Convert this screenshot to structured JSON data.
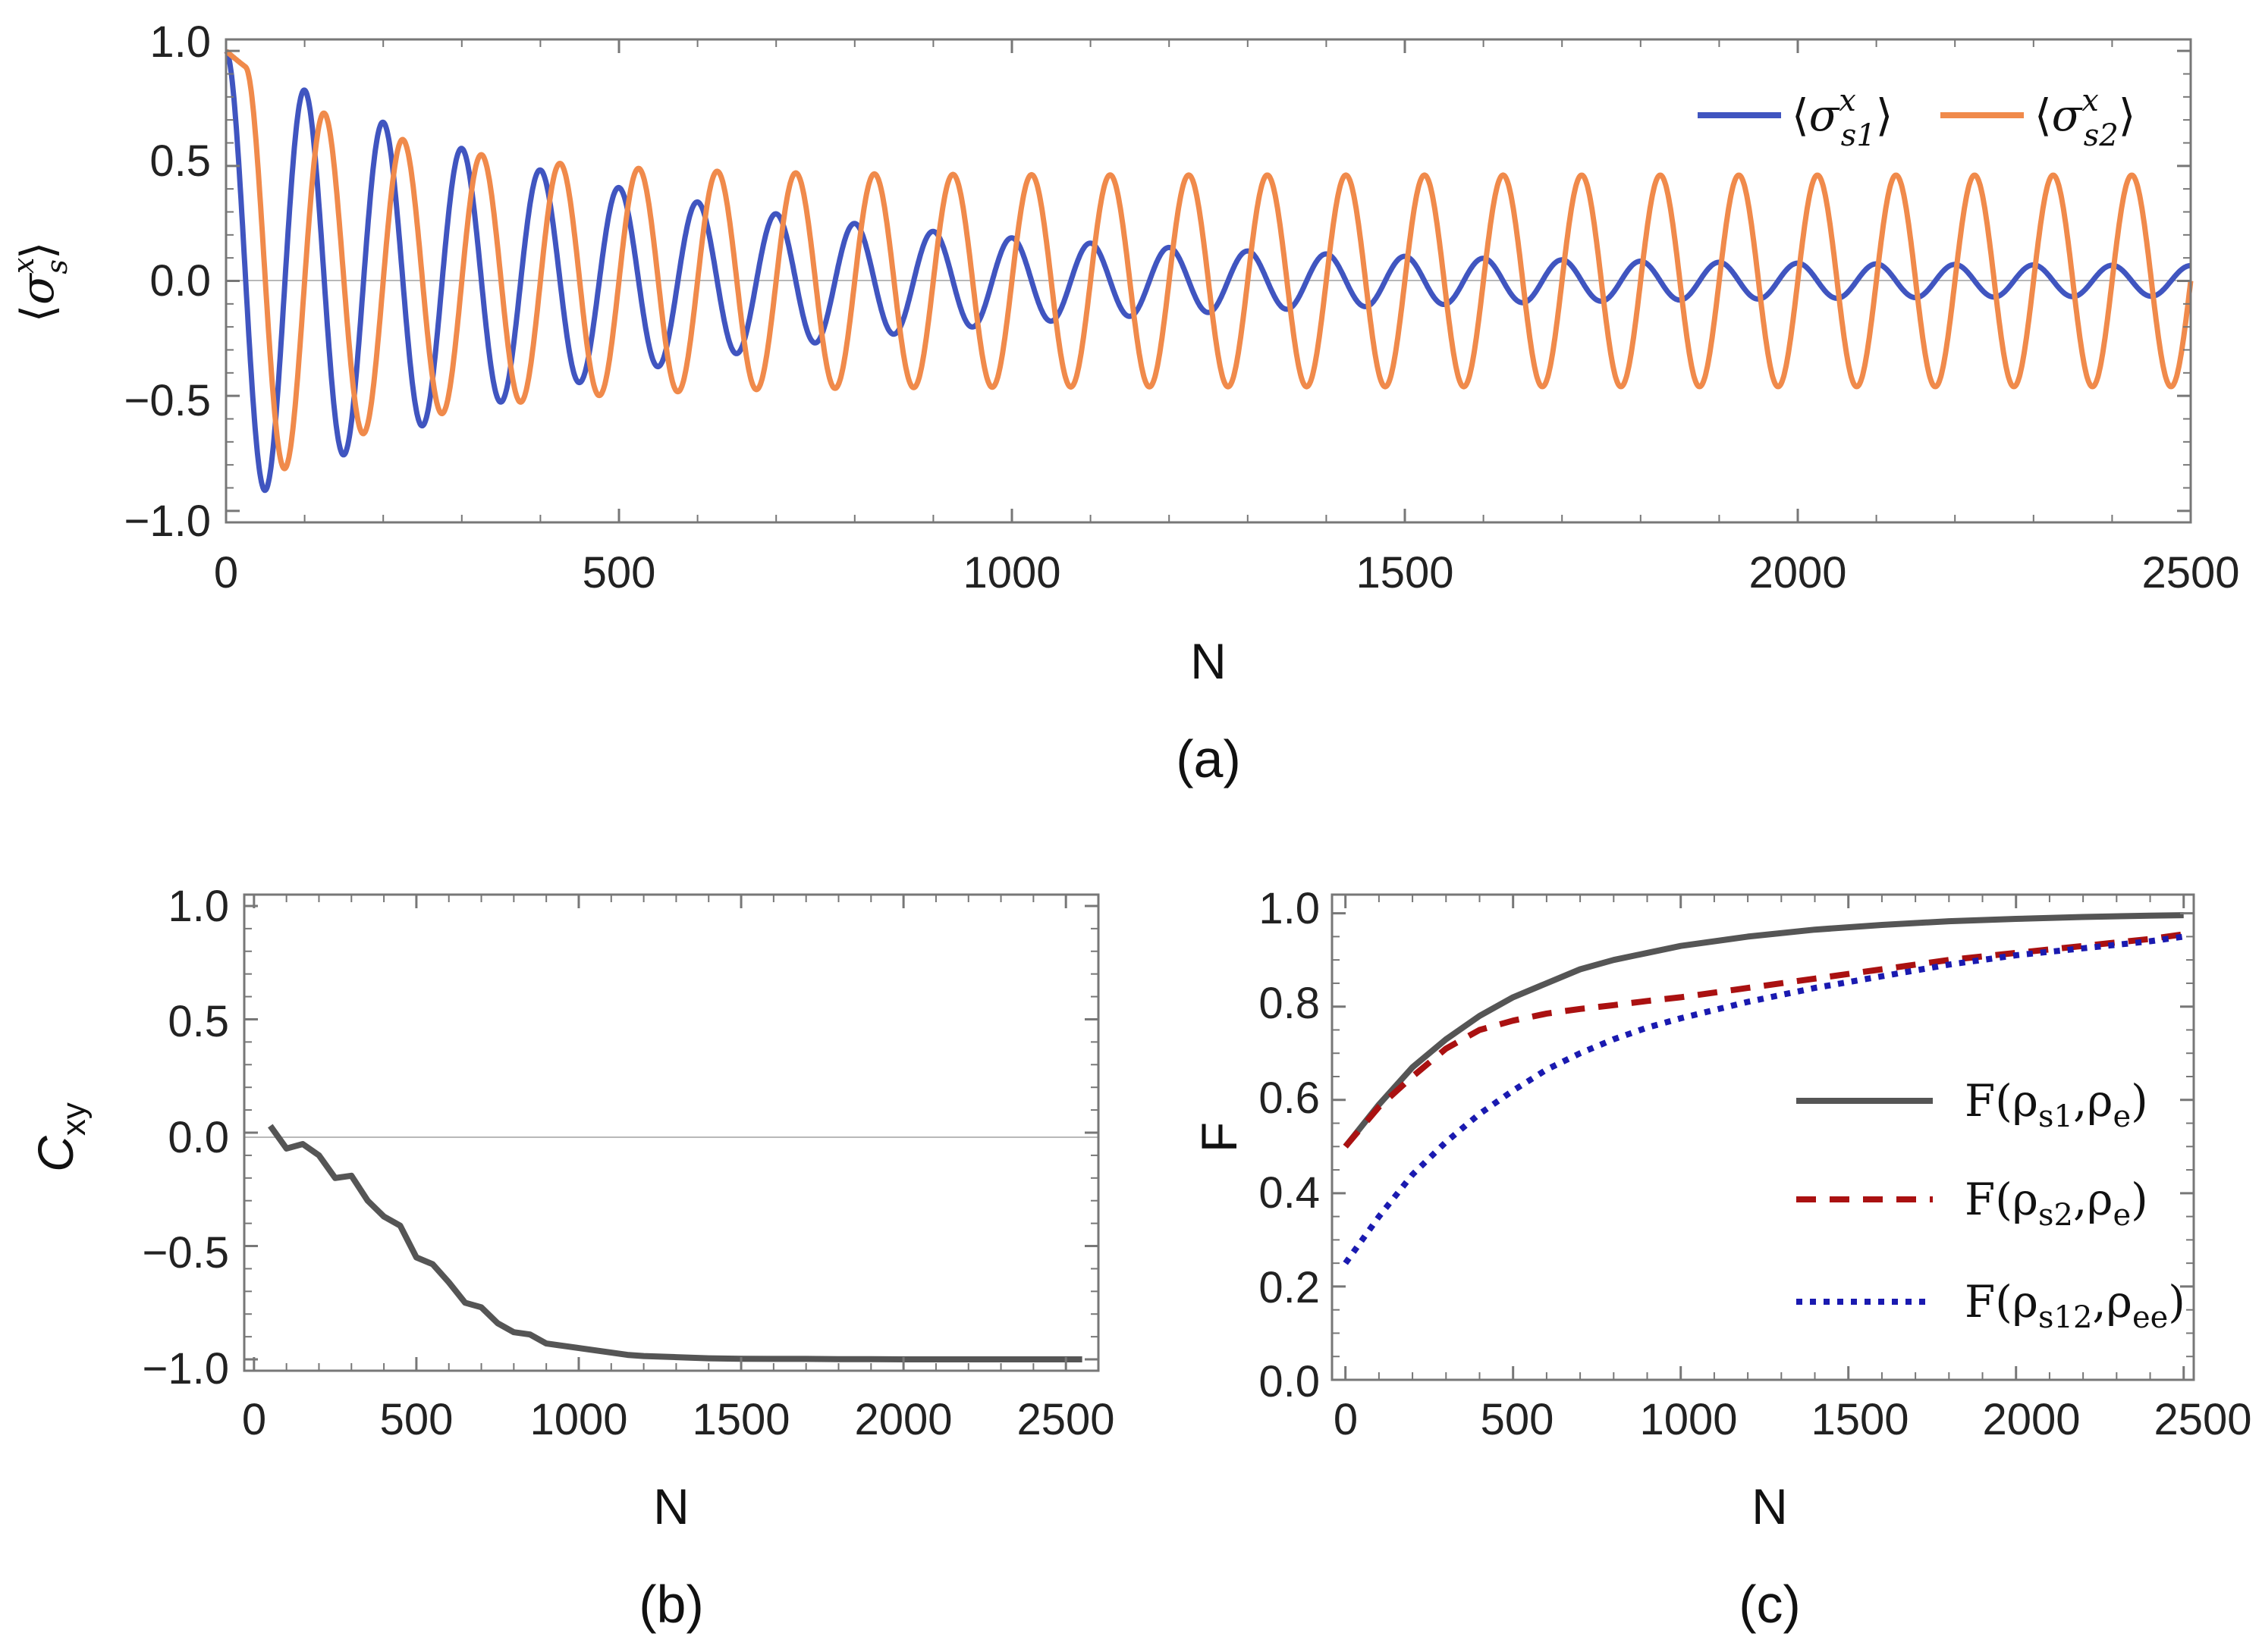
{
  "chart_data": [
    {
      "id": "a",
      "type": "line",
      "caption": "(a)",
      "xlabel": "N",
      "ylabel": "⟨σ_s^x⟩",
      "xlim": [
        0,
        2500
      ],
      "ylim": [
        -1.05,
        1.05
      ],
      "xticks": [
        "0",
        "500",
        "1000",
        "1500",
        "2000",
        "2500"
      ],
      "yticks": [
        "1.0",
        "0.5",
        "0.0",
        "−0.5",
        "−1.0"
      ],
      "legend_position": "top-right",
      "period_N": 100,
      "series": [
        {
          "name": "⟨σ^x_s1⟩",
          "legend_main": "σ",
          "legend_sup": "x",
          "legend_sub": "s1",
          "color": "#4055c0",
          "initial_amplitude": 1.0,
          "long_time_amplitude": 0.06,
          "decay_N": 500
        },
        {
          "name": "⟨σ^x_s2⟩",
          "legend_main": "σ",
          "legend_sup": "x",
          "legend_sub": "s2",
          "color": "#f08a4b",
          "initial_amplitude": 1.0,
          "long_time_amplitude": 0.46,
          "decay_N": 180,
          "phase_lag_N": 25
        }
      ]
    },
    {
      "id": "b",
      "type": "line",
      "caption": "(b)",
      "xlabel": "N",
      "ylabel": "Cxy",
      "ylabel_main": "C",
      "ylabel_sub": "xy",
      "xlim": [
        -30,
        2600
      ],
      "ylim": [
        -1.05,
        1.05
      ],
      "xticks": [
        "0",
        "500",
        "1000",
        "1500",
        "2000",
        "2500"
      ],
      "yticks": [
        "1.0",
        "0.5",
        "0.0",
        "−0.5",
        "−1.0"
      ],
      "series": [
        {
          "name": "Cxy",
          "color": "#555555",
          "x": [
            50,
            100,
            150,
            200,
            250,
            300,
            350,
            400,
            450,
            500,
            550,
            600,
            650,
            700,
            750,
            800,
            850,
            900,
            950,
            1000,
            1050,
            1100,
            1150,
            1200,
            1300,
            1400,
            1500,
            1600,
            1700,
            1800,
            1900,
            2000,
            2100,
            2200,
            2300,
            2400,
            2500,
            2550
          ],
          "y": [
            0.03,
            -0.07,
            -0.05,
            -0.1,
            -0.2,
            -0.19,
            -0.3,
            -0.37,
            -0.41,
            -0.55,
            -0.58,
            -0.66,
            -0.75,
            -0.77,
            -0.84,
            -0.88,
            -0.89,
            -0.93,
            -0.94,
            -0.95,
            -0.96,
            -0.97,
            -0.98,
            -0.985,
            -0.99,
            -0.995,
            -0.997,
            -0.998,
            -0.998,
            -0.999,
            -0.999,
            -1.0,
            -1.0,
            -1.0,
            -1.0,
            -1.0,
            -1.0,
            -1.0
          ]
        }
      ]
    },
    {
      "id": "c",
      "type": "line",
      "caption": "(c)",
      "xlabel": "N",
      "ylabel": "F",
      "xlim": [
        -40,
        2530
      ],
      "ylim": [
        0.0,
        1.04
      ],
      "xticks": [
        "0",
        "500",
        "1000",
        "1500",
        "2000",
        "2500"
      ],
      "yticks": [
        "1.0",
        "0.8",
        "0.6",
        "0.4",
        "0.2",
        "0.0"
      ],
      "legend_position": "center-right",
      "x": [
        0,
        100,
        200,
        300,
        400,
        500,
        600,
        700,
        800,
        900,
        1000,
        1200,
        1400,
        1600,
        1800,
        2000,
        2200,
        2400,
        2500
      ],
      "series": [
        {
          "name": "F(ρs1,ρe)",
          "main": "F(ρ",
          "sub": "s1",
          "mid": ",ρ",
          "sub2": "e",
          "end": ")",
          "color": "#555555",
          "dash": "solid",
          "values": [
            0.5,
            0.59,
            0.67,
            0.73,
            0.78,
            0.82,
            0.85,
            0.88,
            0.9,
            0.915,
            0.93,
            0.95,
            0.965,
            0.975,
            0.983,
            0.988,
            0.992,
            0.995,
            0.996
          ]
        },
        {
          "name": "F(ρs2,ρe)",
          "main": "F(ρ",
          "sub": "s2",
          "mid": ",ρ",
          "sub2": "e",
          "end": ")",
          "color": "#aa1111",
          "dash": "dashed",
          "values": [
            0.5,
            0.585,
            0.65,
            0.71,
            0.75,
            0.77,
            0.785,
            0.795,
            0.803,
            0.812,
            0.82,
            0.84,
            0.86,
            0.88,
            0.9,
            0.915,
            0.93,
            0.945,
            0.955
          ]
        },
        {
          "name": "F(ρs12,ρee)",
          "main": "F(ρ",
          "sub": "s12",
          "mid": ",ρ",
          "sub2": "ee",
          "end": ")",
          "color": "#1a1ab0",
          "dash": "dotted",
          "values": [
            0.25,
            0.35,
            0.44,
            0.51,
            0.57,
            0.62,
            0.665,
            0.7,
            0.73,
            0.755,
            0.775,
            0.81,
            0.84,
            0.865,
            0.89,
            0.91,
            0.925,
            0.94,
            0.95
          ]
        }
      ]
    }
  ]
}
